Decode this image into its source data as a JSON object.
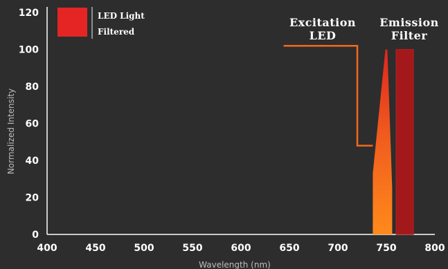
{
  "chart_data": {
    "type": "area",
    "title": "",
    "xlabel": "Wavelength (nm)",
    "ylabel": "Normalized Intensity",
    "xlim": [
      400,
      800
    ],
    "ylim": [
      0,
      120
    ],
    "xticks": [
      "400",
      "450",
      "500",
      "550",
      "600",
      "650",
      "700",
      "750",
      "800"
    ],
    "yticks": [
      "0",
      "20",
      "40",
      "60",
      "80",
      "100",
      "120"
    ],
    "grid": false,
    "legend_position": "top-left",
    "legend": [
      {
        "label": "LED Light",
        "color": "#e52424"
      },
      {
        "label": "Filtered",
        "color": "#e52424"
      }
    ],
    "series": [
      {
        "name": "LED Light",
        "kind": "spectrum",
        "x": [
          736,
          749,
          751,
          756,
          756,
          736
        ],
        "y": [
          33,
          100,
          100,
          25,
          0,
          0
        ]
      },
      {
        "name": "Filtered",
        "kind": "band",
        "x": [
          760,
          760,
          778,
          778
        ],
        "y": [
          0,
          100,
          100,
          0
        ]
      }
    ],
    "annotations": [
      {
        "id": "excitation",
        "lines": [
          "Excitation",
          "LED"
        ],
        "path_x": [
          644,
          720,
          720,
          736
        ],
        "path_y": [
          102,
          102,
          48,
          48
        ],
        "color": "#f26a1b"
      },
      {
        "id": "emission",
        "lines": [
          "Emission",
          "Filter"
        ]
      }
    ]
  }
}
